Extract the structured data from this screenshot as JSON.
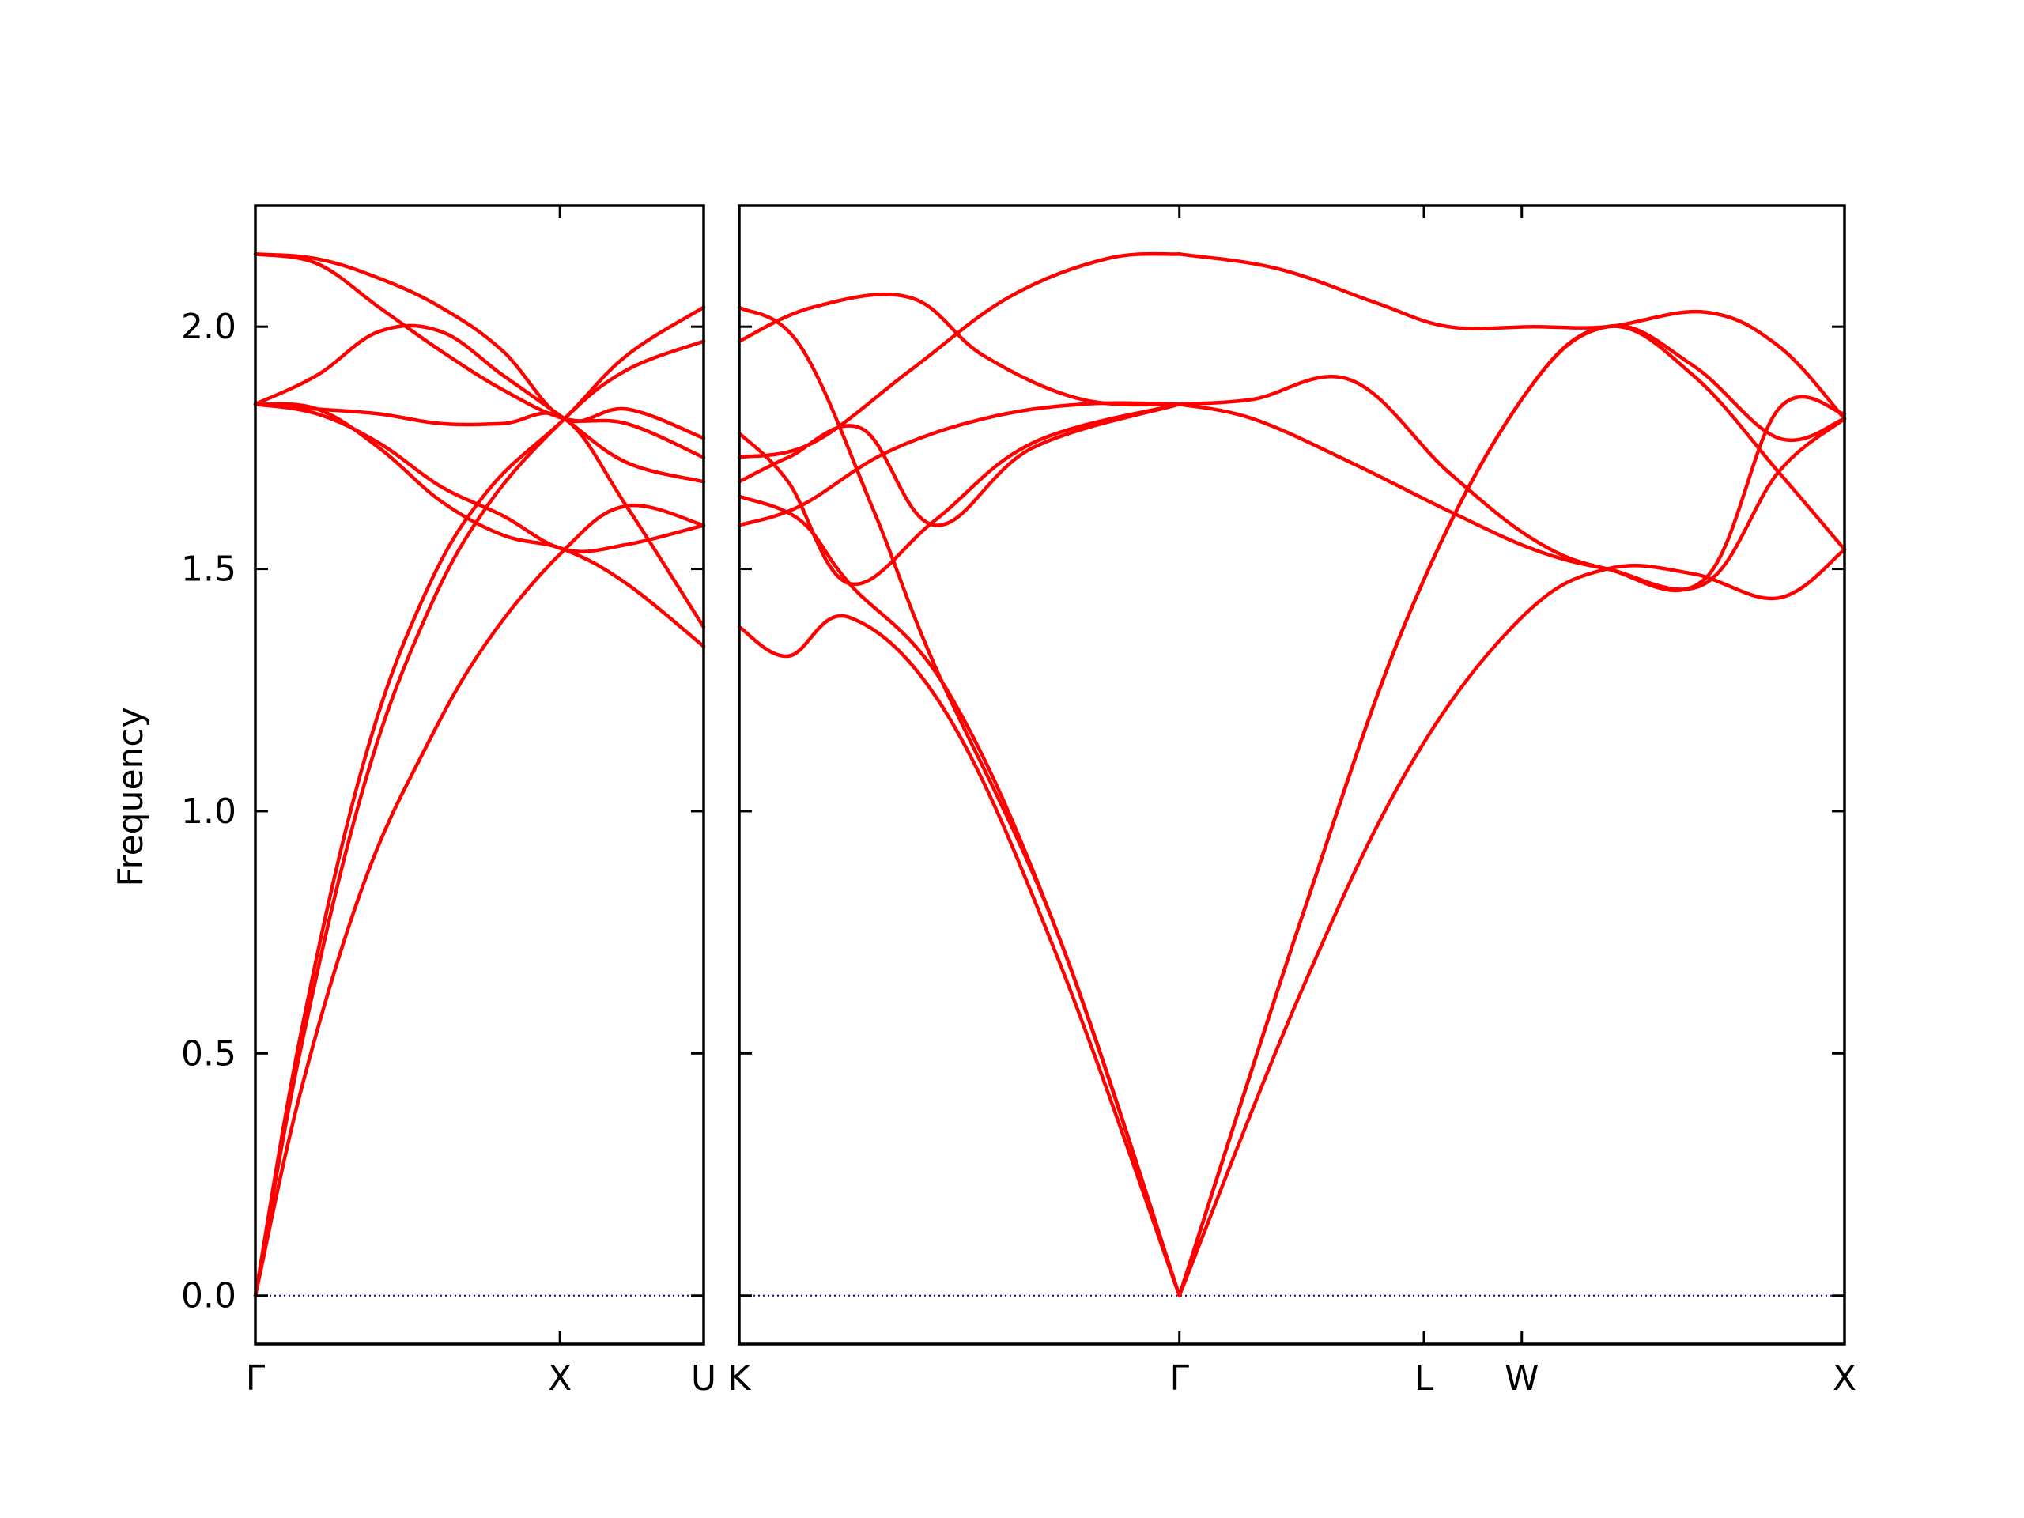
{
  "chart_data": {
    "type": "line",
    "title": "",
    "ylabel": "Frequency",
    "ylim": [
      -0.1,
      2.25
    ],
    "yticks": [
      0.0,
      0.5,
      1.0,
      1.5,
      2.0
    ],
    "ytick_labels": [
      "0.0",
      "0.5",
      "1.0",
      "1.5",
      "2.0"
    ],
    "grid": false,
    "line_color": "#ff0000",
    "zero_line_color": "#0000aa",
    "panels": [
      {
        "path_labels": [
          "Γ",
          "X",
          "U"
        ],
        "bands": [
          {
            "x": [
              0,
              0.15,
              0.35,
              0.55,
              0.75,
              1.0,
              1.2,
              1.45
            ],
            "y": [
              0,
              0.43,
              0.85,
              1.13,
              1.35,
              1.54,
              1.63,
              1.59
            ]
          },
          {
            "x": [
              0,
              0.15,
              0.35,
              0.55,
              0.75,
              1.0,
              1.2,
              1.45
            ],
            "y": [
              0,
              0.52,
              1.05,
              1.4,
              1.63,
              1.81,
              1.91,
              1.97
            ]
          },
          {
            "x": [
              0,
              0.15,
              0.35,
              0.55,
              0.75,
              1.0,
              1.2,
              1.45
            ],
            "y": [
              0,
              0.55,
              1.1,
              1.45,
              1.66,
              1.81,
              1.94,
              2.04
            ]
          },
          {
            "x": [
              0,
              0.2,
              0.4,
              0.6,
              0.8,
              1.0,
              1.2,
              1.45
            ],
            "y": [
              1.84,
              1.83,
              1.75,
              1.64,
              1.57,
              1.54,
              1.47,
              1.34
            ]
          },
          {
            "x": [
              0,
              0.2,
              0.4,
              0.6,
              0.8,
              1.0,
              1.2,
              1.45
            ],
            "y": [
              1.84,
              1.82,
              1.76,
              1.67,
              1.61,
              1.54,
              1.55,
              1.59
            ]
          },
          {
            "x": [
              0,
              0.2,
              0.4,
              0.6,
              0.8,
              1.0,
              1.2,
              1.45
            ],
            "y": [
              1.84,
              1.83,
              1.82,
              1.8,
              1.8,
              1.81,
              1.63,
              1.38
            ]
          },
          {
            "x": [
              0,
              0.2,
              0.4,
              0.6,
              0.8,
              1.0,
              1.2,
              1.45
            ],
            "y": [
              1.84,
              1.9,
              1.99,
              1.99,
              1.9,
              1.81,
              1.72,
              1.68
            ]
          },
          {
            "x": [
              0,
              0.2,
              0.4,
              0.6,
              0.8,
              1.0,
              1.2,
              1.45
            ],
            "y": [
              2.15,
              2.13,
              2.04,
              1.95,
              1.87,
              1.81,
              1.8,
              1.73
            ]
          },
          {
            "x": [
              0,
              0.2,
              0.4,
              0.6,
              0.8,
              1.0,
              1.2,
              1.45
            ],
            "y": [
              2.15,
              2.14,
              2.1,
              2.04,
              1.95,
              1.81,
              1.83,
              1.77
            ]
          }
        ]
      },
      {
        "path_labels": [
          "K",
          "Γ",
          "L",
          "W",
          "X"
        ],
        "bands": [
          {
            "x": [
              0,
              0.2,
              0.45,
              0.85,
              1.3,
              1.8
            ],
            "y": [
              1.38,
              1.32,
              1.4,
              1.2,
              0.7,
              0
            ]
          },
          {
            "x": [
              0,
              0.25,
              0.45,
              0.85,
              1.3,
              1.8
            ],
            "y": [
              1.65,
              1.6,
              1.47,
              1.25,
              0.75,
              0
            ]
          },
          {
            "x": [
              0,
              0.25,
              0.55,
              0.8,
              1.3,
              1.8
            ],
            "y": [
              2.04,
              1.96,
              1.62,
              1.3,
              0.75,
              0
            ]
          },
          {
            "x": [
              0,
              0.2,
              0.45,
              0.8,
              1.2,
              1.8
            ],
            "y": [
              1.78,
              1.68,
              1.47,
              1.6,
              1.76,
              1.84
            ]
          },
          {
            "x": [
              0,
              0.2,
              0.5,
              0.8,
              1.2,
              1.8
            ],
            "y": [
              1.68,
              1.73,
              1.79,
              1.59,
              1.75,
              1.84
            ]
          },
          {
            "x": [
              0,
              0.25,
              0.6,
              1.0,
              1.4,
              1.8
            ],
            "y": [
              1.59,
              1.63,
              1.74,
              1.81,
              1.84,
              1.84
            ]
          },
          {
            "x": [
              0,
              0.3,
              0.7,
              1.0,
              1.4,
              1.8
            ],
            "y": [
              1.97,
              2.04,
              2.06,
              1.94,
              1.85,
              1.84
            ]
          },
          {
            "x": [
              0,
              0.3,
              0.7,
              1.1,
              1.5,
              1.8
            ],
            "y": [
              1.73,
              1.76,
              1.91,
              2.06,
              2.14,
              2.15
            ]
          },
          {
            "x": [
              1.8,
              2.3,
              2.75,
              3.2,
              3.55,
              3.9,
              4.25,
              4.52
            ],
            "y": [
              0,
              0.63,
              1.1,
              1.4,
              1.5,
              1.49,
              1.44,
              1.54
            ]
          },
          {
            "x": [
              1.8,
              2.3,
              2.75,
              3.2,
              3.55,
              3.9,
              4.25,
              4.52
            ],
            "y": [
              0,
              0.78,
              1.42,
              1.85,
              2.0,
              1.9,
              1.7,
              1.54
            ]
          },
          {
            "x": [
              1.8,
              2.3,
              2.75,
              3.2,
              3.55,
              3.9,
              4.25,
              4.52
            ],
            "y": [
              0,
              0.78,
              1.42,
              1.85,
              2.0,
              1.92,
              1.77,
              1.81
            ]
          },
          {
            "x": [
              1.8,
              2.1,
              2.5,
              2.9,
              3.25,
              3.55,
              3.95,
              4.25,
              4.52
            ],
            "y": [
              1.84,
              1.81,
              1.72,
              1.62,
              1.54,
              1.5,
              1.47,
              1.7,
              1.81
            ]
          },
          {
            "x": [
              1.8,
              2.1,
              2.5,
              2.9,
              3.25,
              3.55,
              3.95,
              4.25,
              4.52
            ],
            "y": [
              1.84,
              1.85,
              1.89,
              1.7,
              1.56,
              1.5,
              1.48,
              1.83,
              1.82
            ]
          },
          {
            "x": [
              1.8,
              2.2,
              2.6,
              2.9,
              3.25,
              3.55,
              3.95,
              4.25,
              4.52
            ],
            "y": [
              2.15,
              2.12,
              2.05,
              2.0,
              2.0,
              2.0,
              2.03,
              1.96,
              1.81
            ]
          }
        ]
      }
    ]
  }
}
